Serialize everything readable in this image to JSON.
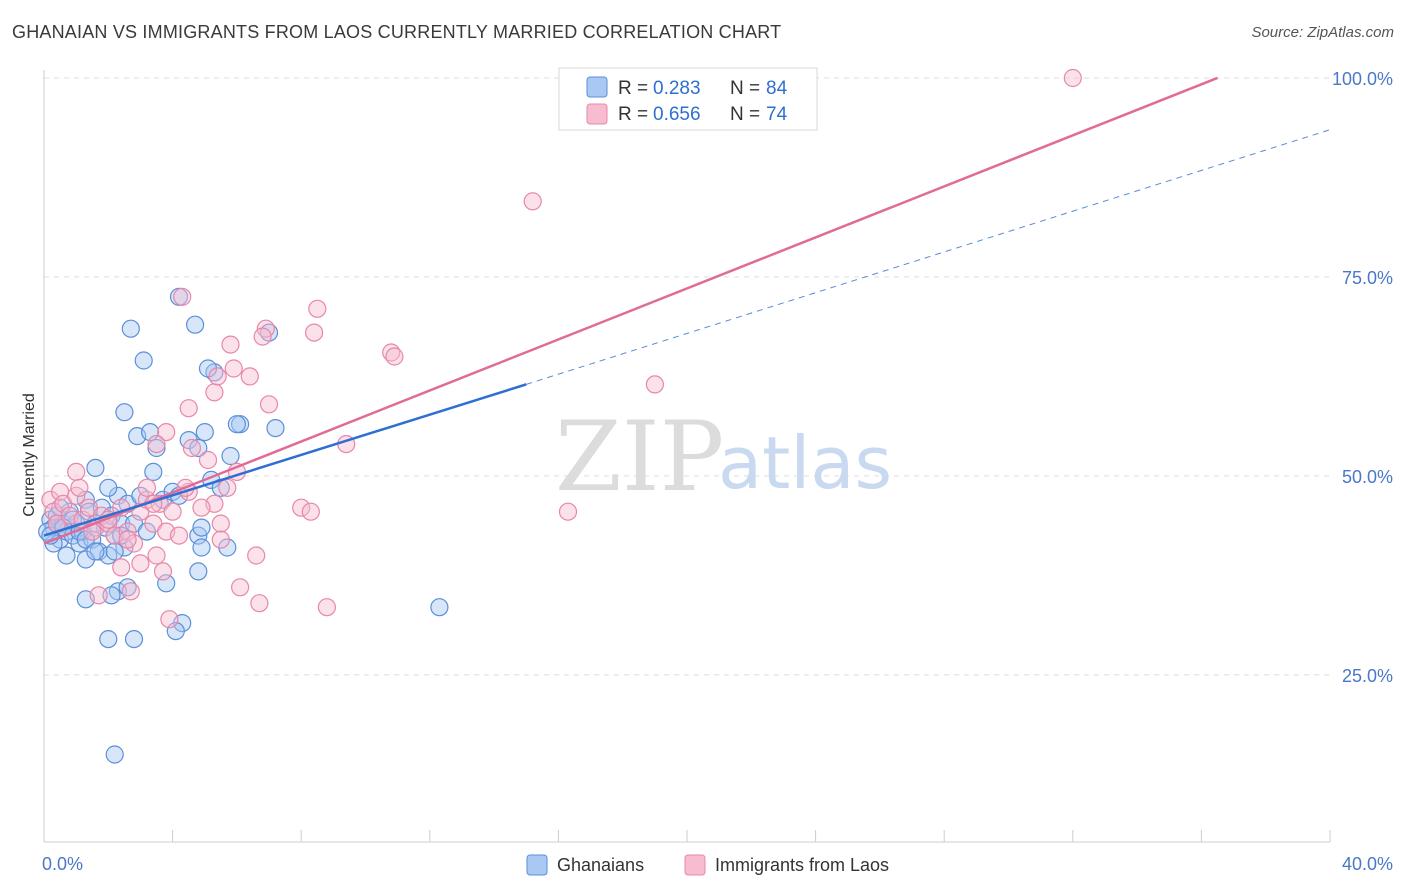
{
  "title": "GHANAIAN VS IMMIGRANTS FROM LAOS CURRENTLY MARRIED CORRELATION CHART",
  "source": "Source: ZipAtlas.com",
  "colors": {
    "blue_fill": "#a9c8f3",
    "blue_stroke": "#5b8fd8",
    "blue_line": "#2f6fd1",
    "pink_fill": "#f7bcd0",
    "pink_stroke": "#e887a8",
    "pink_line": "#e06c96",
    "tick_text": "#4a78c8",
    "grid": "#dddddd"
  },
  "legend": {
    "r_label": "R =",
    "n_label": "N =",
    "rows": [
      {
        "r": "0.283",
        "n": "84"
      },
      {
        "r": "0.656",
        "n": "74"
      }
    ]
  },
  "bottom_legend": [
    "Ghanaians",
    "Immigrants from Laos"
  ],
  "watermark": {
    "zip": "ZIP",
    "atlas": "atlas"
  },
  "chart_data": {
    "type": "scatter",
    "ylabel": "Currently Married",
    "xlabel": "",
    "x_tick_labels": [
      "0.0%",
      "40.0%"
    ],
    "y_tick_labels": [
      "100.0%",
      "75.0%",
      "50.0%",
      "25.0%"
    ],
    "xlim": [
      0,
      40
    ],
    "ylim": [
      4,
      101
    ],
    "y_ticks": [
      100,
      75,
      50,
      25
    ],
    "grid": true,
    "legend_position": "top-center",
    "series": [
      {
        "name": "Ghanaians",
        "R": 0.283,
        "N": 84,
        "trend": {
          "x0": 0,
          "y0": 42.5,
          "x1": 15,
          "y1": 61.5,
          "dashed_to_x": 40,
          "dashed_to_y": 93.5
        },
        "points": [
          [
            0.2,
            44.5
          ],
          [
            0.3,
            43.5
          ],
          [
            0.4,
            45.0
          ],
          [
            0.5,
            42.0
          ],
          [
            0.6,
            44.0
          ],
          [
            0.7,
            43.0
          ],
          [
            0.8,
            45.5
          ],
          [
            0.9,
            42.5
          ],
          [
            1.0,
            44.0
          ],
          [
            1.1,
            41.5
          ],
          [
            1.2,
            43.0
          ],
          [
            1.3,
            47.0
          ],
          [
            1.4,
            45.5
          ],
          [
            1.5,
            42.0
          ],
          [
            1.6,
            44.0
          ],
          [
            1.7,
            40.5
          ],
          [
            1.8,
            46.0
          ],
          [
            1.9,
            43.5
          ],
          [
            2.0,
            40.0
          ],
          [
            2.1,
            45.0
          ],
          [
            2.2,
            42.5
          ],
          [
            2.3,
            47.5
          ],
          [
            2.4,
            44.0
          ],
          [
            2.5,
            41.0
          ],
          [
            0.3,
            41.5
          ],
          [
            0.5,
            46.0
          ],
          [
            0.7,
            40.0
          ],
          [
            0.9,
            44.5
          ],
          [
            1.1,
            43.0
          ],
          [
            1.3,
            42.0
          ],
          [
            1.6,
            51.0
          ],
          [
            2.0,
            48.5
          ],
          [
            2.4,
            42.5
          ],
          [
            2.6,
            46.5
          ],
          [
            2.8,
            44.0
          ],
          [
            3.0,
            47.5
          ],
          [
            3.2,
            43.0
          ],
          [
            2.5,
            58.0
          ],
          [
            2.9,
            55.0
          ],
          [
            3.3,
            55.5
          ],
          [
            3.5,
            53.5
          ],
          [
            3.4,
            50.5
          ],
          [
            3.7,
            47.0
          ],
          [
            4.0,
            48.0
          ],
          [
            4.2,
            47.5
          ],
          [
            4.5,
            54.5
          ],
          [
            4.8,
            53.5
          ],
          [
            5.0,
            55.5
          ],
          [
            5.2,
            49.5
          ],
          [
            5.5,
            48.5
          ],
          [
            5.8,
            52.5
          ],
          [
            6.1,
            56.5
          ],
          [
            5.3,
            63.0
          ],
          [
            3.1,
            64.5
          ],
          [
            2.7,
            68.5
          ],
          [
            4.7,
            69.0
          ],
          [
            4.2,
            72.5
          ],
          [
            7.0,
            68.0
          ],
          [
            7.2,
            56.0
          ],
          [
            6.0,
            56.5
          ],
          [
            5.1,
            63.5
          ],
          [
            4.8,
            42.5
          ],
          [
            4.9,
            43.5
          ],
          [
            5.7,
            41.0
          ],
          [
            4.9,
            41.0
          ],
          [
            4.8,
            38.0
          ],
          [
            2.3,
            35.5
          ],
          [
            2.1,
            35.0
          ],
          [
            1.3,
            34.5
          ],
          [
            2.6,
            36.0
          ],
          [
            3.8,
            36.5
          ],
          [
            4.3,
            31.5
          ],
          [
            4.1,
            30.5
          ],
          [
            2.0,
            29.5
          ],
          [
            2.8,
            29.5
          ],
          [
            1.3,
            39.5
          ],
          [
            1.6,
            40.5
          ],
          [
            2.2,
            40.5
          ],
          [
            12.3,
            33.5
          ],
          [
            2.2,
            15.0
          ],
          [
            0.1,
            43.0
          ],
          [
            0.2,
            42.5
          ],
          [
            0.4,
            44.0
          ],
          [
            0.6,
            43.5
          ]
        ]
      },
      {
        "name": "Immigrants from Laos",
        "R": 0.656,
        "N": 74,
        "trend": {
          "x0": 0,
          "y0": 41.5,
          "x1": 36.5,
          "y1": 100
        },
        "points": [
          [
            0.2,
            47.0
          ],
          [
            0.3,
            45.5
          ],
          [
            0.4,
            44.0
          ],
          [
            0.5,
            48.0
          ],
          [
            0.6,
            46.5
          ],
          [
            0.8,
            45.0
          ],
          [
            1.0,
            47.5
          ],
          [
            1.2,
            44.5
          ],
          [
            1.4,
            46.0
          ],
          [
            1.6,
            43.5
          ],
          [
            1.8,
            45.0
          ],
          [
            2.0,
            44.0
          ],
          [
            2.2,
            42.5
          ],
          [
            2.4,
            46.0
          ],
          [
            2.6,
            43.0
          ],
          [
            2.8,
            41.5
          ],
          [
            3.0,
            45.5
          ],
          [
            3.2,
            47.0
          ],
          [
            3.4,
            44.0
          ],
          [
            3.6,
            46.5
          ],
          [
            3.8,
            43.0
          ],
          [
            4.0,
            45.5
          ],
          [
            4.2,
            42.5
          ],
          [
            4.5,
            48.0
          ],
          [
            1.0,
            50.5
          ],
          [
            1.1,
            48.5
          ],
          [
            2.6,
            42.0
          ],
          [
            3.0,
            39.0
          ],
          [
            3.5,
            40.0
          ],
          [
            2.4,
            38.5
          ],
          [
            2.7,
            35.5
          ],
          [
            1.7,
            35.0
          ],
          [
            3.7,
            38.0
          ],
          [
            3.9,
            32.0
          ],
          [
            4.4,
            48.5
          ],
          [
            4.5,
            58.5
          ],
          [
            4.6,
            53.5
          ],
          [
            5.1,
            52.0
          ],
          [
            5.3,
            46.5
          ],
          [
            5.5,
            44.0
          ],
          [
            5.7,
            48.5
          ],
          [
            6.0,
            50.5
          ],
          [
            5.3,
            60.5
          ],
          [
            5.4,
            62.5
          ],
          [
            5.9,
            63.5
          ],
          [
            6.4,
            62.5
          ],
          [
            5.8,
            66.5
          ],
          [
            6.9,
            68.5
          ],
          [
            7.0,
            59.0
          ],
          [
            6.8,
            67.5
          ],
          [
            8.5,
            71.0
          ],
          [
            8.4,
            68.0
          ],
          [
            10.8,
            65.5
          ],
          [
            9.4,
            54.0
          ],
          [
            8.0,
            46.0
          ],
          [
            8.3,
            45.5
          ],
          [
            10.9,
            65.0
          ],
          [
            4.3,
            72.5
          ],
          [
            3.8,
            55.5
          ],
          [
            3.5,
            54.0
          ],
          [
            6.6,
            40.0
          ],
          [
            6.1,
            36.0
          ],
          [
            6.7,
            34.0
          ],
          [
            8.8,
            33.5
          ],
          [
            3.2,
            48.5
          ],
          [
            2.0,
            44.5
          ],
          [
            1.5,
            43.0
          ],
          [
            5.5,
            42.0
          ],
          [
            4.9,
            46.0
          ],
          [
            15.2,
            84.5
          ],
          [
            32.0,
            100.0
          ],
          [
            19.0,
            61.5
          ],
          [
            16.3,
            45.5
          ],
          [
            3.4,
            46.5
          ]
        ]
      }
    ]
  }
}
